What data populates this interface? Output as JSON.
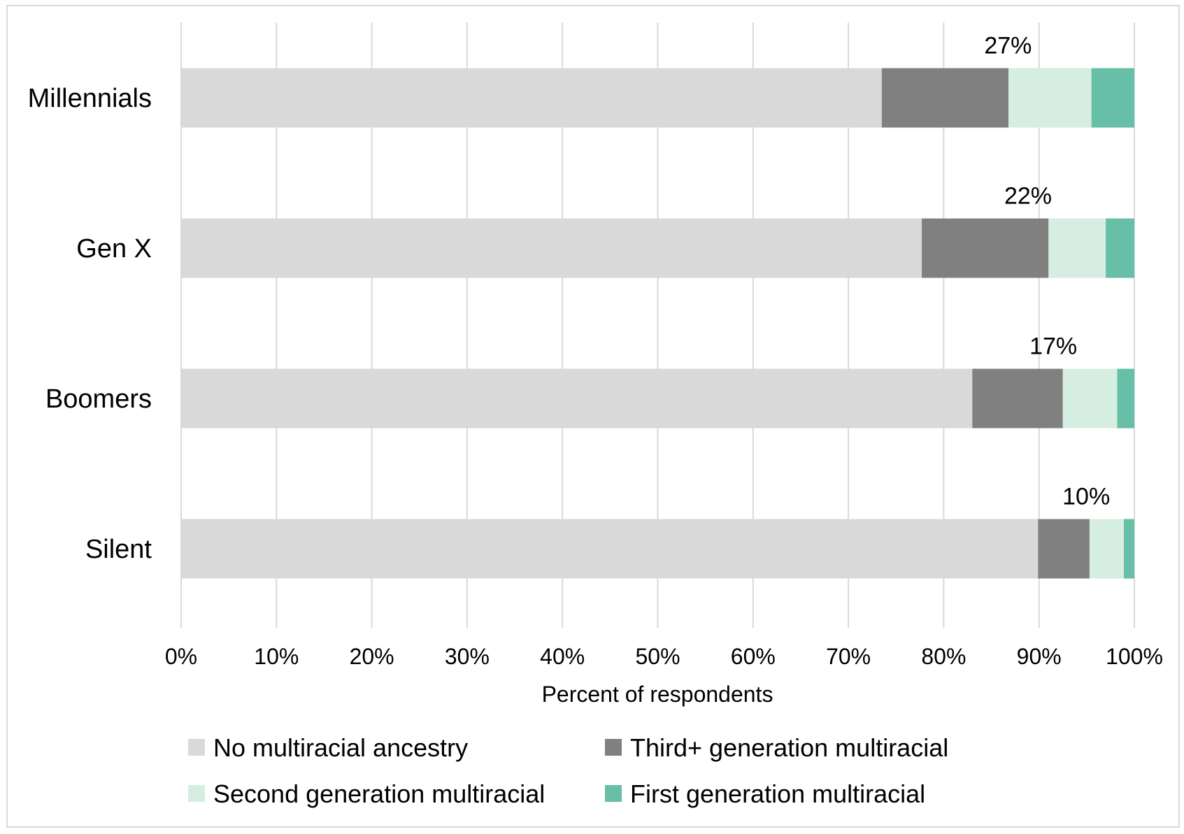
{
  "chart_data": {
    "type": "bar",
    "orientation": "horizontal",
    "stacked": true,
    "categories": [
      "Millennials",
      "Gen X",
      "Boomers",
      "Silent"
    ],
    "series": [
      {
        "name": "No multiracial ancestry",
        "color": "#d9d9d9",
        "values": [
          73.5,
          77.7,
          83.0,
          89.9
        ]
      },
      {
        "name": "Third+ generation multiracial",
        "color": "#808080",
        "values": [
          13.3,
          13.3,
          9.5,
          5.4
        ]
      },
      {
        "name": "Second generation multiracial",
        "color": "#d5eee1",
        "values": [
          8.7,
          6.0,
          5.7,
          3.6
        ]
      },
      {
        "name": "First generation multiracial",
        "color": "#66bfa6",
        "values": [
          4.5,
          3.0,
          1.8,
          1.1
        ]
      }
    ],
    "annotations": [
      "27%",
      "22%",
      "17%",
      "10%"
    ],
    "xlabel": "Percent of respondents",
    "ylabel": "",
    "title": "",
    "xlim": [
      0,
      100
    ],
    "xticks": [
      "0%",
      "10%",
      "20%",
      "30%",
      "40%",
      "50%",
      "60%",
      "70%",
      "80%",
      "90%",
      "100%"
    ],
    "grid": "vertical",
    "legend": "bottom"
  }
}
